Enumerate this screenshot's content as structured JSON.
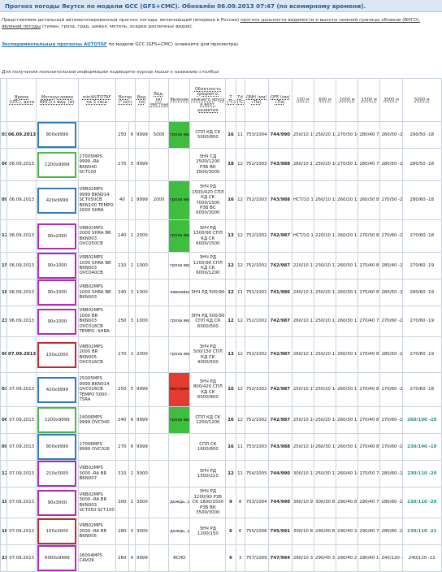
{
  "title": "Прогноз погоды Якутск по модели GCC (GFS+CMC). Обновлён 06.09.2013 07:47 (по всемирному времени).",
  "intro": {
    "line1": "Представляем детальный автоматизированный прогноз погоды, включающий (впервые в России)",
    "link1": "прогноз дальности видимости и высоты нижней границы облаков (ВНГО)",
    "line2": ", явлений погоды",
    "line3": "(туман, гроза, град, шквал, метель, осадки различных видов)."
  },
  "experimental": {
    "link": "Экспериментальные прогнозы AUTOTAF",
    "rest": "по модели GCC (GFS+CMC) (кликните для просмотра)"
  },
  "hint": "Для получения пояснительной информации подведите курсор мыши к названию столбца",
  "headers": [
    "",
    "Время (UTC), дата",
    "Метеоусловия ВНГО x вид. (м)",
    "miniAUTOTAF на 3 часа",
    "Ветер (°,м/с)",
    "Вид. (м)",
    "Вид. (м) местные*",
    "Явление",
    "Облачность среднего, нижнего яруса и верт. развития",
    "T (°C)",
    "Td (°C)",
    "QNH (мм/гПа)",
    "QFE (мм/гПа)",
    "100 м",
    "600 м",
    "1000 м",
    "1500 м",
    "3000 м",
    "5000 м"
  ],
  "rows": [
    {
      "h": "03",
      "date": "06.09.2013",
      "bold_date": true,
      "met": "800x9999",
      "met_color": "blue",
      "taf": "",
      "wd": "250",
      "ws": "6",
      "vis": "9999",
      "vis_loc": "5000",
      "phen": "гроза вер.40% местами ливневой дождь",
      "phen_color": "green",
      "cloud": "СПЛ КД СК 5000/800",
      "t": "16",
      "td": "11",
      "qnh": "753/1004",
      "qfe": "744/990",
      "w100": "250/10 15",
      "w600": "250/20 12",
      "w1000": "270/30 10",
      "w1500": "280/40 7",
      "w3000": "260/50 -2",
      "w5000": "290/50 -18"
    },
    {
      "h": "06",
      "date": "06.09.2013",
      "bold_date": false,
      "met": "1200x9999",
      "met_color": "green",
      "taf": "27005MPS 9999 -RA BKN040 SCT100",
      "wd": "270",
      "ws": "5",
      "vis": "9999",
      "vis_loc": "",
      "phen": "",
      "phen_color": "",
      "cloud": "ЗНЧ СД 2500/1200 РЗБ ВК 3500/3000",
      "t": "18",
      "td": "12",
      "qnh": "752/1003",
      "qfe": "743/988",
      "w100": "280/10 17",
      "w600": "250/20 16",
      "w1000": "270/30 12",
      "w1500": "280/40 7",
      "w3000": "280/50 -2",
      "w5000": "280/50 -18"
    },
    {
      "h": "09",
      "date": "06.09.2013",
      "bold_date": false,
      "met": "420x9999",
      "met_color": "blue",
      "taf": "VRB02MPS 9999 BKN014 SCT050CB BKN100 TEMPO 2000 SHRA",
      "wd": "40",
      "ws": "1",
      "vis": "9999",
      "vis_loc": "2000",
      "phen": "гроза вер.40% местами ливневой дождь",
      "phen_color": "green",
      "cloud": "ЗНЧ РД 1500/420 СПЛ КД СК 7000/1500 РЗБ ВС 6000/3000",
      "t": "16",
      "td": "12",
      "qnh": "752/1003",
      "qfe": "743/988",
      "w100": "НСТ/10 16",
      "w600": "260/10 15",
      "w1000": "260/20 12",
      "w1500": "260/30 8",
      "w3000": "270/50 -2",
      "w5000": "280/60 -18"
    },
    {
      "h": "12",
      "date": "06.09.2013",
      "bold_date": false,
      "met": "90x2000",
      "met_color": "purple",
      "taf": "VRB02MPS 2000 SHRA BR BKN003 OVC050CB",
      "wd": "140",
      "ws": "1",
      "vis": "2000",
      "vis_loc": "",
      "phen": "гроза вер.40% местами ливневой дождь, дымка",
      "phen_color": "green",
      "cloud": "ЗНЧ РД 1500/90 СПЛ КД СК 6000/1500",
      "t": "13",
      "td": "12",
      "qnh": "752/1002",
      "qfe": "742/987",
      "w100": "НСТ/10 13",
      "w600": "220/10 13",
      "w1000": "260/20 11",
      "w1500": "270/30 8",
      "w3000": "270/60 -2",
      "w5000": "270/60 -18"
    },
    {
      "h": "15",
      "date": "06.09.2013",
      "bold_date": false,
      "met": "90x1000",
      "met_color": "purple",
      "taf": "VRB02MPS 1000 SHRA BR BKN003 OVC040CB",
      "wd": "210",
      "ws": "2",
      "vis": "1000",
      "vis_loc": "",
      "phen": "гроза вер.40% местами ливневой дождь, дымка",
      "phen_color": "",
      "cloud": "ЗНЧ РД 1200/90 СПЛ КД СК 6000/1200",
      "t": "12",
      "td": "12",
      "qnh": "752/1002",
      "qfe": "742/987",
      "w100": "220/10 13",
      "w600": "230/10 13",
      "w1000": "260/30 11",
      "w1500": "270/40 8",
      "w3000": "280/40 -2",
      "w5000": "270/60 -19"
    },
    {
      "h": "18",
      "date": "06.09.2013",
      "bold_date": false,
      "met": "90x1000",
      "met_color": "purple",
      "taf": "VRB02MPS 1000 SHRA BR BKN003",
      "wd": "240",
      "ws": "3",
      "vis": "1000",
      "vis_loc": "",
      "phen": "ливневой дождь, дымка",
      "phen_color": "",
      "cloud": "ЗНЧ РД 500/90",
      "t": "12",
      "td": "11",
      "qnh": "751/1001",
      "qfe": "741/986",
      "w100": "240/10 12",
      "w600": "250/20 12",
      "w1000": "260/30 11",
      "w1500": "270/40 8",
      "w3000": "280/50 -2",
      "w5000": "280/60 -19"
    },
    {
      "h": "21",
      "date": "06.09.2013",
      "bold_date": false,
      "met": "90x1000",
      "met_color": "purple",
      "taf": "VRB02MPS 1000 BR BKN003 OVC016CB TEMPO -SHRA",
      "wd": "250",
      "ws": "3",
      "vis": "1000",
      "vis_loc": "",
      "phen": "гроза вер.40% местами ливневой дождь, дымка",
      "phen_color": "",
      "cloud": "ЗНЧ РД 500/90 СПЛ КД СК 6000/500",
      "t": "12",
      "td": "12",
      "qnh": "752/1002",
      "qfe": "742/987",
      "w100": "260/10 13",
      "w600": "250/20 12",
      "w1000": "260/30 11",
      "w1500": "270/40 7",
      "w3000": "270/60 -2",
      "w5000": "270/60 -19"
    },
    {
      "h": "00",
      "date": "07.09.2013",
      "bold_date": true,
      "met": "150x2000",
      "met_color": "red",
      "taf": "VRB02MPS 2000 BR BKN005 OVC016CB",
      "wd": "270",
      "ws": "3",
      "vis": "2000",
      "vis_loc": "",
      "phen": "гроза вер.40% местами ливневой дождь, дымка",
      "phen_color": "",
      "cloud": "ЗНЧ РД 500/150 СПЛ КД СК 4000/500",
      "t": "13",
      "td": "12",
      "qnh": "752/1002",
      "qfe": "742/987",
      "w100": "260/10 13",
      "w600": "250/20 14",
      "w1000": "260/30 11",
      "w1500": "270/40 8",
      "w3000": "280/50 -2",
      "w5000": "270/60 -19"
    },
    {
      "h": "03",
      "date": "07.09.2013",
      "bold_date": false,
      "met": "420x9999",
      "met_color": "blue",
      "taf": "25005MPS 9999 BKN014 OVC026CB TEMPO 5000 -TSRA",
      "wd": "250",
      "ws": "5",
      "vis": "9999",
      "vis_loc": "",
      "phen": "местами гроза, местами ливневой дождь",
      "phen_color": "red",
      "cloud": "ЗНЧ РД 800/420 СПЛ КД СК 6000/800",
      "t": "16",
      "td": "12",
      "qnh": "752/1002",
      "qfe": "742/987",
      "w100": "250/10 15",
      "w600": "250/20 14",
      "w1000": "260/30 11",
      "w1500": "270/40 8",
      "w3000": "270/60 -2",
      "w5000": "270/60 -18"
    },
    {
      "h": "06",
      "date": "07.09.2013",
      "bold_date": false,
      "met": "1200x9999",
      "met_color": "green",
      "taf": "24006MPS 9999 OVC040",
      "wd": "240",
      "ws": "6",
      "vis": "9999",
      "vis_loc": "",
      "phen": "гроза вер.40%",
      "phen_color": "green",
      "cloud": "СПЛ КД СК 1200/1200",
      "t": "16",
      "td": "12",
      "qnh": "752/1002",
      "qfe": "742/987",
      "w100": "250/10 16",
      "w600": "250/20 14",
      "w1000": "260/30 11",
      "w1500": "270/40 8",
      "w3000": "270/60 -2",
      "w5000": "260/100 -20"
    },
    {
      "h": "09",
      "date": "07.09.2013",
      "bold_date": false,
      "met": "800x9999",
      "met_color": "blue",
      "taf": "27006MPS 9999 OVC026",
      "wd": "270",
      "ws": "6",
      "vis": "9999",
      "vis_loc": "",
      "phen": "",
      "phen_color": "",
      "cloud": "СПЛ СК 1600/800",
      "t": "16",
      "td": "11",
      "qnh": "753/1003",
      "qfe": "743/988",
      "w100": "250/10 16",
      "w600": "260/30 13",
      "w1000": "260/30 11",
      "w1500": "270/40 8",
      "w3000": "270/60 -2",
      "w5000": "230/140 -19"
    },
    {
      "h": "12",
      "date": "07.09.2013",
      "bold_date": false,
      "met": "210x3000",
      "met_color": "purple",
      "taf": "VRB02MPS 3000 -RA BR BKN007",
      "wd": "310",
      "ws": "2",
      "vis": "3000",
      "vis_loc": "",
      "phen": "",
      "phen_color": "",
      "cloud": "ЗНЧ РД 1500/210",
      "t": "12",
      "td": "11",
      "qnh": "754/1005",
      "qfe": "744/990",
      "w100": "300/10 13",
      "w600": "250/30 13",
      "w1000": "260/40 10",
      "w1500": "270/50 7",
      "w3000": "280/60 -2",
      "w5000": "230/110 -20"
    },
    {
      "h": "15",
      "date": "07.09.2013",
      "bold_date": false,
      "met": "90x3000",
      "met_color": "purple",
      "taf": "VRB02MPS 3000 -RA BR BKN003 SCT050 SCT100",
      "wd": "300",
      "ws": "2",
      "vis": "3000",
      "vis_loc": "",
      "phen": "дождь, дымка",
      "phen_color": "",
      "cloud": "ЗНЧ РД 1200/90 РЗБ СК 1800/1500 РЗБ ВК 3500/3000",
      "t": "9",
      "td": "8",
      "qnh": "753/1004",
      "qfe": "744/990",
      "w100": "360/10 9",
      "w600": "300/30 8",
      "w1000": "290/40 8",
      "w1500": "290/40 7",
      "w3000": "280/60 -2",
      "w5000": "230/110 -20"
    },
    {
      "h": "18",
      "date": "07.09.2013",
      "bold_date": false,
      "met": "150x3000",
      "met_color": "red",
      "taf": "VRB02MPS 3000 -RA BR BKN005",
      "wd": "280",
      "ws": "3",
      "vis": "3000",
      "vis_loc": "",
      "phen": "дождь, дымка",
      "phen_color": "",
      "cloud": "ЗНЧ РД 1200/150",
      "t": "6",
      "td": "6",
      "qnh": "755/1006",
      "qfe": "745/991",
      "w100": "300/10 8",
      "w600": "290/40 8",
      "w1000": "290/40 3",
      "w1500": "290/40 7",
      "w3000": "280/60 -2",
      "w5000": "230/110 -21"
    },
    {
      "h": "21",
      "date": "07.09.2013",
      "bold_date": false,
      "met": "6000x9999",
      "met_color": "purple",
      "taf": "26004MPS CAVOK",
      "wd": "260",
      "ws": "4",
      "vis": "9999",
      "vis_loc": "",
      "phen": "ЯСНО",
      "phen_color": "",
      "cloud": "",
      "t": "6",
      "td": "3",
      "qnh": "757/1009",
      "qfe": "747/994",
      "w100": "260/10 3",
      "w600": "290/40 3",
      "w1000": "290/40 2",
      "w1500": "290/40 1",
      "w3000": "240/120 -5",
      "w5000": "240/120 -22"
    }
  ],
  "colors": {
    "title_bg": "#dbe8f3",
    "title_text": "#2b5b8e",
    "met_blue": "#2f7bbd",
    "met_green": "#4fb34b",
    "met_purple": "#b02bb4",
    "met_red": "#c0292b",
    "phen_green": "#3fbd3f",
    "phen_red": "#e23b2f",
    "wind_teal": "#1e8a8a"
  }
}
